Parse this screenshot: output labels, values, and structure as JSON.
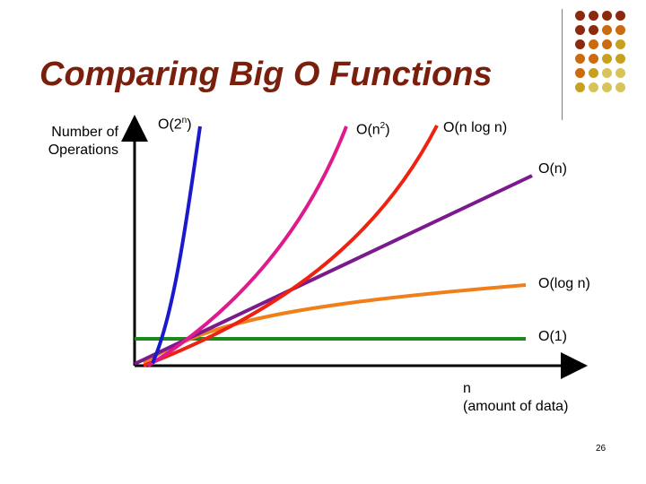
{
  "title": "Comparing Big O Functions",
  "y_axis_label_line1": "Number of",
  "y_axis_label_line2": "Operations",
  "x_axis_label_line1": "n",
  "x_axis_label_line2": "(amount of data)",
  "page_number": "26",
  "curve_labels": {
    "exp": "O(2",
    "exp_sup": "n",
    "exp_close": ")",
    "quad": "O(n",
    "quad_sup": "2",
    "quad_close": ")",
    "nlogn": "O(n log n)",
    "linear": "O(n)",
    "log": "O(log n)",
    "const": "O(1)"
  },
  "colors": {
    "title": "#7a1f0c",
    "exp": "#1a1acc",
    "quad": "#e0198c",
    "nlogn": "#ee2211",
    "linear": "#7a1a8c",
    "log": "#f07f1a",
    "const": "#1a8a1a",
    "axes": "#000000",
    "dot_dark": "#8b2a0d",
    "dot_orange": "#cc6a10",
    "dot_gold": "#c8a020",
    "dot_light": "#d6c45a"
  }
}
